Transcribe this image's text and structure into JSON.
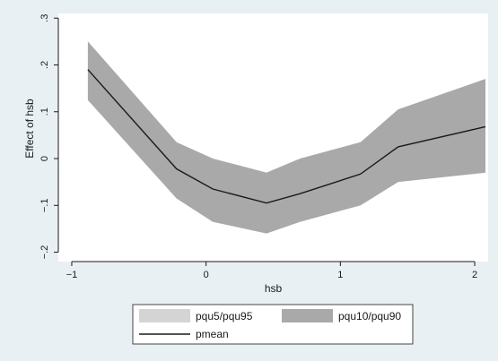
{
  "colors": {
    "outer_background": "#e9f0f4",
    "plot_background": "#ffffff",
    "band_outer": "#d4d4d4",
    "band_inner": "#a9a9a9",
    "mean_line": "#1a1a1a"
  },
  "chart_data": {
    "type": "area",
    "xlabel": "hsb",
    "ylabel": "Effect of hsb",
    "xlim": [
      -1.1,
      2.1
    ],
    "ylim": [
      -0.22,
      0.31
    ],
    "xticks": [
      {
        "value": -1,
        "label": "−1"
      },
      {
        "value": 0,
        "label": "0"
      },
      {
        "value": 1,
        "label": "1"
      },
      {
        "value": 2,
        "label": "2"
      }
    ],
    "yticks": [
      {
        "value": -0.2,
        "label": "−.2"
      },
      {
        "value": -0.1,
        "label": "−.1"
      },
      {
        "value": 0,
        "label": "0"
      },
      {
        "value": 0.1,
        "label": ".1"
      },
      {
        "value": 0.2,
        "label": ".2"
      },
      {
        "value": 0.3,
        "label": ".3"
      }
    ],
    "grid": false,
    "legend_position": "bottom",
    "x": [
      -0.88,
      -0.22,
      0.05,
      0.45,
      0.7,
      1.15,
      1.43,
      2.08
    ],
    "series": [
      {
        "name": "pqu5/pqu95",
        "kind": "band",
        "lower": [
          0.125,
          -0.085,
          -0.135,
          -0.16,
          -0.135,
          -0.1,
          -0.05,
          -0.03
        ],
        "upper": [
          0.25,
          0.035,
          0.0,
          -0.03,
          0.0,
          0.035,
          0.105,
          0.17
        ]
      },
      {
        "name": "pqu10/pqu90",
        "kind": "band",
        "lower": [
          0.125,
          -0.085,
          -0.135,
          -0.16,
          -0.135,
          -0.1,
          -0.05,
          -0.03
        ],
        "upper": [
          0.25,
          0.035,
          0.0,
          -0.03,
          0.0,
          0.035,
          0.105,
          0.17
        ]
      },
      {
        "name": "pmean",
        "kind": "line",
        "values": [
          0.19,
          -0.022,
          -0.065,
          -0.095,
          -0.075,
          -0.033,
          0.025,
          0.068
        ]
      }
    ]
  }
}
